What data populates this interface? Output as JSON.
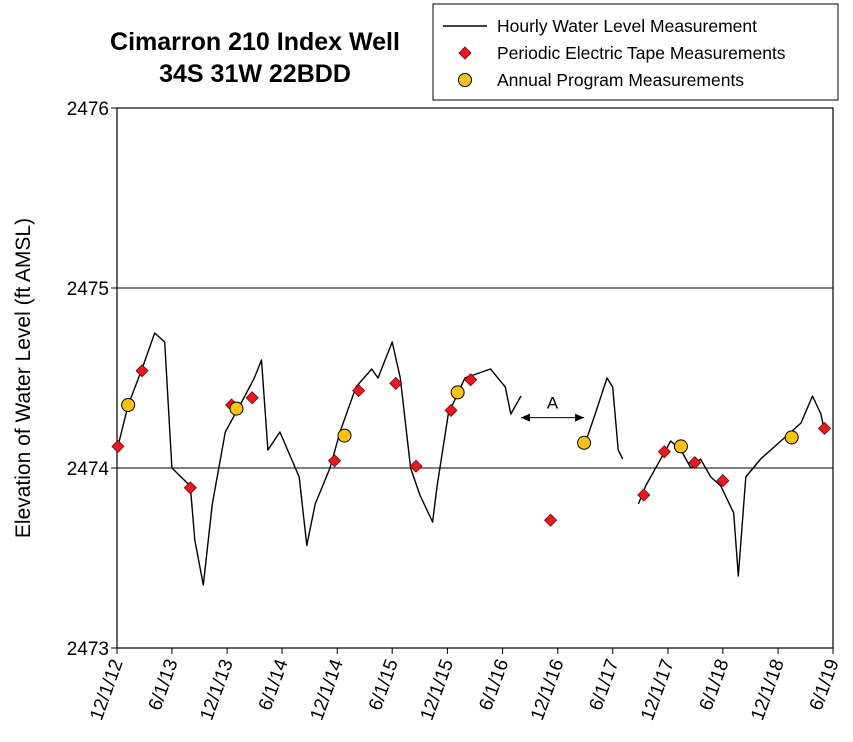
{
  "chart_data": {
    "type": "line",
    "title": [
      "Cimarron 210 Index Well",
      "34S 31W 22BDD"
    ],
    "y_label": "Elevation of Water Level (ft AMSL)",
    "ylim": [
      2473,
      2476
    ],
    "yticks": [
      2473,
      2474,
      2475,
      2476
    ],
    "xlim": [
      "2012-12-01",
      "2019-06-01"
    ],
    "xticks": [
      {
        "value": "2012-12-01",
        "label": "12/1/12"
      },
      {
        "value": "2013-06-01",
        "label": "6/1/13"
      },
      {
        "value": "2013-12-01",
        "label": "12/1/13"
      },
      {
        "value": "2014-06-01",
        "label": "6/1/14"
      },
      {
        "value": "2014-12-01",
        "label": "12/1/14"
      },
      {
        "value": "2015-06-01",
        "label": "6/1/15"
      },
      {
        "value": "2015-12-01",
        "label": "12/1/15"
      },
      {
        "value": "2016-06-01",
        "label": "6/1/16"
      },
      {
        "value": "2016-12-01",
        "label": "12/1/16"
      },
      {
        "value": "2017-06-01",
        "label": "6/1/17"
      },
      {
        "value": "2017-12-01",
        "label": "12/1/17"
      },
      {
        "value": "2018-06-01",
        "label": "6/1/18"
      },
      {
        "value": "2018-12-01",
        "label": "12/1/18"
      },
      {
        "value": "2019-06-01",
        "label": "6/1/19"
      }
    ],
    "grid": true,
    "legend": "top-right",
    "annotations": [
      {
        "text": "A",
        "x": [
          "2016-08-01",
          "2017-02-26"
        ],
        "y": 2474.28
      }
    ],
    "series": [
      {
        "name": "Hourly Water Level Measurement",
        "color": "#000000",
        "marker": "none",
        "x": [
          "2012-12-01",
          "2013-01-07",
          "2013-02-22",
          "2013-04-05",
          "2013-05-08",
          "2013-06-01",
          "2013-08-01",
          "2013-08-16",
          "2013-09-13",
          "2013-10-13",
          "2013-11-25",
          "2014-01-13",
          "2014-03-01",
          "2014-03-25",
          "2014-04-15",
          "2014-05-25",
          "2014-07-28",
          "2014-08-22",
          "2014-09-19",
          "2014-11-07",
          "2014-12-10",
          "2015-02-01",
          "2015-03-25",
          "2015-04-15",
          "2015-06-01",
          "2015-06-28",
          "2015-08-01",
          "2015-09-01",
          "2015-10-13",
          "2015-10-28",
          "2015-12-04",
          "2016-01-28",
          "2016-04-22",
          "2016-06-10",
          "2016-06-28",
          "2016-08-01",
          "2016-10-15",
          "2017-03-04",
          "2017-04-04",
          "2017-05-13",
          "2017-06-01",
          "2017-06-19",
          "2017-07-04",
          "2017-08-01",
          "2017-08-25",
          "2017-09-18",
          "2017-11-07",
          "2017-12-10",
          "2018-01-13",
          "2018-02-15",
          "2018-03-19",
          "2018-04-22",
          "2018-05-25",
          "2018-07-07",
          "2018-07-22",
          "2018-08-16",
          "2018-10-04",
          "2018-12-10",
          "2019-02-15",
          "2019-03-25",
          "2019-04-22",
          "2019-05-04"
        ],
        "values": [
          2474.1,
          2474.35,
          2474.55,
          2474.75,
          2474.7,
          2474.0,
          2473.9,
          2473.6,
          2473.35,
          2473.8,
          2474.2,
          2474.35,
          2474.5,
          2474.6,
          2474.1,
          2474.2,
          2473.95,
          2473.57,
          2473.8,
          2474.0,
          2474.2,
          2474.45,
          2474.55,
          2474.5,
          2474.7,
          2474.5,
          2474.0,
          2473.85,
          2473.7,
          2473.9,
          2474.3,
          2474.5,
          2474.55,
          2474.45,
          2474.3,
          2474.4,
          null,
          2474.15,
          2474.3,
          2474.5,
          2474.45,
          2474.1,
          2474.05,
          null,
          2473.8,
          2473.9,
          2474.05,
          2474.15,
          2474.1,
          2474.0,
          2474.05,
          2473.95,
          2473.9,
          2473.75,
          2473.4,
          2473.95,
          2474.05,
          2474.15,
          2474.25,
          2474.4,
          2474.3,
          2474.2
        ]
      },
      {
        "name": "Periodic Electric Tape Measurements",
        "color": "#e8191e",
        "marker": "diamond",
        "x": [
          "2012-12-04",
          "2013-02-22",
          "2013-08-01",
          "2013-12-16",
          "2014-02-22",
          "2014-11-22",
          "2015-02-10",
          "2015-06-13",
          "2015-08-19",
          "2015-12-13",
          "2016-02-16",
          "2016-11-07",
          "2017-09-12",
          "2017-11-19",
          "2018-02-28",
          "2018-06-01",
          "2019-05-04"
        ],
        "values": [
          2474.12,
          2474.54,
          2473.89,
          2474.35,
          2474.39,
          2474.04,
          2474.43,
          2474.47,
          2474.01,
          2474.32,
          2474.49,
          2473.71,
          2473.85,
          2474.09,
          2474.03,
          2473.93,
          2474.22
        ]
      },
      {
        "name": "Annual Program Measurements",
        "color": "#ffc20e",
        "marker": "circle",
        "x": [
          "2013-01-07",
          "2014-01-01",
          "2014-12-25",
          "2016-01-04",
          "2017-02-26",
          "2018-01-13",
          "2019-01-15"
        ],
        "values": [
          2474.35,
          2474.33,
          2474.18,
          2474.42,
          2474.14,
          2474.12,
          2474.17
        ]
      }
    ]
  }
}
